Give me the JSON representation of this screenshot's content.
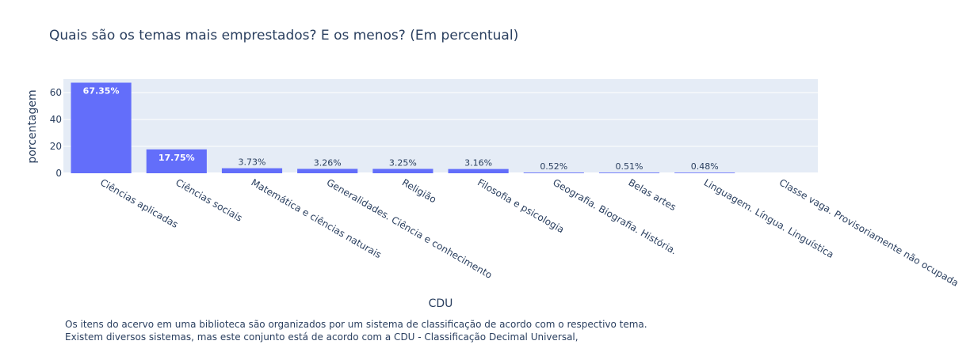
{
  "chart_data": {
    "type": "bar",
    "title": "Quais são os temas mais emprestados? E os menos? (Em percentual)",
    "xlabel": "CDU",
    "ylabel": "porcentagem",
    "ylim": [
      0,
      70
    ],
    "yticks": [
      0,
      20,
      40,
      60
    ],
    "grid": true,
    "bar_color": "#636efa",
    "plot_bg": "#e5ecf6",
    "categories": [
      "Ciências aplicadas",
      "Ciências sociais",
      "Matemática e ciências naturais",
      "Generalidades. Ciência e conhecimento",
      "Religião",
      "Filosofia e psicologia",
      "Geografia. Biografia. História.",
      "Belas artes",
      "Linguagem. Língua. Linguística",
      "Classe vaga. Provisoriamente não ocupada"
    ],
    "values": [
      67.35,
      17.75,
      3.73,
      3.26,
      3.25,
      3.16,
      0.52,
      0.51,
      0.48,
      0
    ],
    "data_labels": [
      "67.35%",
      "17.75%",
      "3.73%",
      "3.26%",
      "3.25%",
      "3.16%",
      "0.52%",
      "0.51%",
      "0.48%",
      ""
    ]
  },
  "annotation": {
    "line1": "Os itens do acervo em uma biblioteca são organizados por um sistema de classificação de acordo com o respectivo tema.",
    "line2": "Existem diversos sistemas, mas este conjunto está de acordo com a CDU - Classificação Decimal Universal,"
  }
}
